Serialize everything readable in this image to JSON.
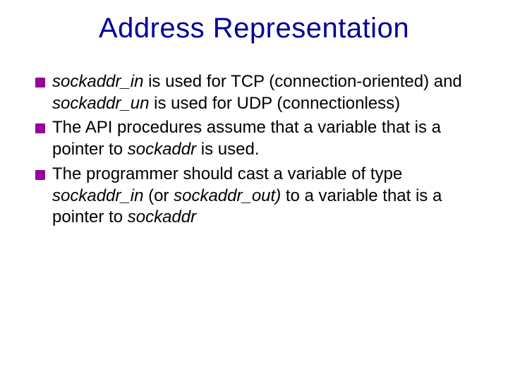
{
  "title": {
    "text": "Address Representation",
    "color": "#000099",
    "fontsize": 40
  },
  "bullet_marker_color": "#990099",
  "body_fontsize": 24,
  "text_color": "#000000",
  "background_color": "#ffffff",
  "bullets": [
    {
      "runs": [
        {
          "t": "sockaddr_in",
          "italic": true
        },
        {
          "t": " is used for TCP (connection-oriented) and "
        },
        {
          "t": "sockaddr_un",
          "italic": true
        },
        {
          "t": " is used for UDP (connectionless)"
        }
      ]
    },
    {
      "runs": [
        {
          "t": "The API procedures assume that a variable that is a pointer to "
        },
        {
          "t": "sockaddr",
          "italic": true
        },
        {
          "t": " is used."
        }
      ]
    },
    {
      "runs": [
        {
          "t": "The programmer should cast a variable of type "
        },
        {
          "t": "sockaddr_in",
          "italic": true
        },
        {
          "t": "  (or "
        },
        {
          "t": "sockaddr_out)",
          "italic": true
        },
        {
          "t": " to a variable that is a pointer to "
        },
        {
          "t": "sockaddr",
          "italic": true
        }
      ]
    }
  ]
}
